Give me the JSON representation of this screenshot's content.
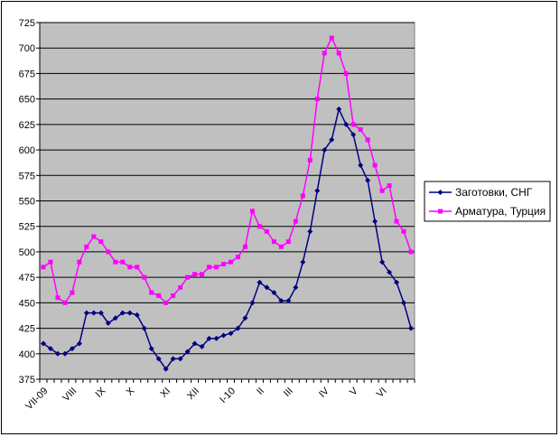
{
  "chart_data": {
    "type": "line",
    "title": "",
    "xlabel": "",
    "ylabel": "",
    "ylim": [
      375,
      725
    ],
    "y_ticks": [
      "375",
      "400",
      "425",
      "450",
      "475",
      "500",
      "525",
      "550",
      "575",
      "600",
      "625",
      "650",
      "675",
      "700",
      "725"
    ],
    "x_tick_labels": [
      "VII-09",
      "VIII",
      "IX",
      "X",
      "XI",
      "XII",
      "I-10",
      "II",
      "III",
      "IV",
      "V",
      "VI"
    ],
    "x_tick_points": [
      0,
      4,
      8,
      12,
      17,
      21,
      26,
      30,
      34,
      39,
      43,
      47
    ],
    "grid": "horizontal",
    "plot_background": "#c0c0c0",
    "legend_position": "right",
    "series": [
      {
        "name": "Заготовки, СНГ",
        "color": "#000080",
        "marker": "diamond",
        "values": [
          410,
          405,
          400,
          400,
          405,
          410,
          440,
          440,
          440,
          430,
          435,
          440,
          440,
          438,
          425,
          405,
          395,
          385,
          395,
          395,
          402,
          410,
          407,
          415,
          415,
          418,
          420,
          425,
          435,
          450,
          470,
          465,
          460,
          452,
          452,
          465,
          490,
          520,
          560,
          600,
          610,
          640,
          625,
          615,
          585,
          570,
          530,
          490,
          480,
          470,
          450,
          425
        ]
      },
      {
        "name": "Арматура, Турция",
        "color": "#ff00ff",
        "marker": "square",
        "values": [
          485,
          490,
          455,
          450,
          460,
          490,
          505,
          515,
          510,
          500,
          490,
          490,
          485,
          485,
          475,
          460,
          457,
          450,
          457,
          465,
          475,
          478,
          478,
          485,
          485,
          488,
          490,
          495,
          505,
          540,
          525,
          520,
          510,
          505,
          510,
          530,
          555,
          590,
          650,
          695,
          710,
          695,
          675,
          625,
          620,
          610,
          585,
          560,
          565,
          530,
          520,
          500
        ]
      }
    ]
  }
}
